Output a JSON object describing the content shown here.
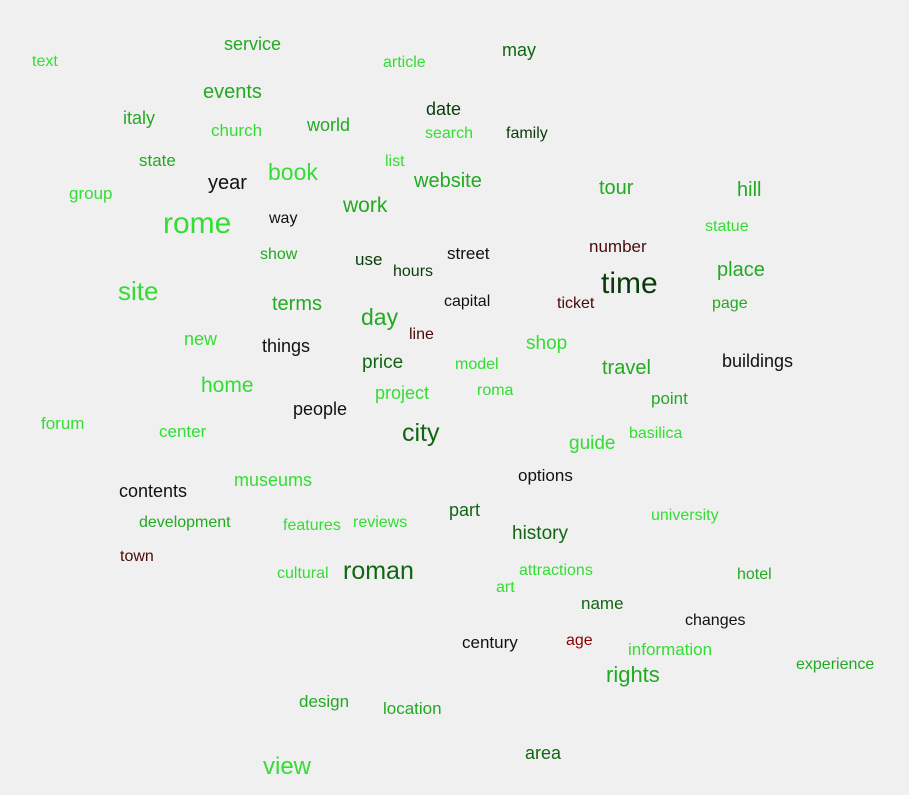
{
  "palette": {
    "lime": "#33dd33",
    "green": "#22aa22",
    "darkgreen": "#116611",
    "deepgreen": "#0a3a0a",
    "black": "#111111",
    "maroon": "#4a0a0a",
    "red": "#8b0000"
  },
  "words": [
    {
      "text": "service",
      "tone": "green"
    },
    {
      "text": "text",
      "tone": "lime"
    },
    {
      "text": "article",
      "tone": "lime"
    },
    {
      "text": "may",
      "tone": "darkgreen"
    },
    {
      "text": "events",
      "tone": "green"
    },
    {
      "text": "italy",
      "tone": "green"
    },
    {
      "text": "church",
      "tone": "lime"
    },
    {
      "text": "world",
      "tone": "green"
    },
    {
      "text": "date",
      "tone": "deepgreen"
    },
    {
      "text": "search",
      "tone": "lime"
    },
    {
      "text": "family",
      "tone": "deepgreen"
    },
    {
      "text": "state",
      "tone": "green"
    },
    {
      "text": "year",
      "tone": "black"
    },
    {
      "text": "book",
      "tone": "lime"
    },
    {
      "text": "list",
      "tone": "lime"
    },
    {
      "text": "website",
      "tone": "green"
    },
    {
      "text": "tour",
      "tone": "green"
    },
    {
      "text": "hill",
      "tone": "green"
    },
    {
      "text": "group",
      "tone": "lime"
    },
    {
      "text": "rome",
      "tone": "lime"
    },
    {
      "text": "way",
      "tone": "black"
    },
    {
      "text": "work",
      "tone": "green"
    },
    {
      "text": "statue",
      "tone": "lime"
    },
    {
      "text": "show",
      "tone": "green"
    },
    {
      "text": "use",
      "tone": "deepgreen"
    },
    {
      "text": "hours",
      "tone": "deepgreen"
    },
    {
      "text": "street",
      "tone": "black"
    },
    {
      "text": "number",
      "tone": "maroon"
    },
    {
      "text": "time",
      "tone": "deepgreen"
    },
    {
      "text": "place",
      "tone": "green"
    },
    {
      "text": "site",
      "tone": "lime"
    },
    {
      "text": "terms",
      "tone": "green"
    },
    {
      "text": "day",
      "tone": "green"
    },
    {
      "text": "capital",
      "tone": "black"
    },
    {
      "text": "ticket",
      "tone": "maroon"
    },
    {
      "text": "page",
      "tone": "green"
    },
    {
      "text": "new",
      "tone": "lime"
    },
    {
      "text": "things",
      "tone": "black"
    },
    {
      "text": "line",
      "tone": "maroon"
    },
    {
      "text": "shop",
      "tone": "lime"
    },
    {
      "text": "price",
      "tone": "darkgreen"
    },
    {
      "text": "model",
      "tone": "lime"
    },
    {
      "text": "travel",
      "tone": "green"
    },
    {
      "text": "buildings",
      "tone": "black"
    },
    {
      "text": "home",
      "tone": "lime"
    },
    {
      "text": "project",
      "tone": "lime"
    },
    {
      "text": "roma",
      "tone": "lime"
    },
    {
      "text": "point",
      "tone": "green"
    },
    {
      "text": "forum",
      "tone": "lime"
    },
    {
      "text": "center",
      "tone": "lime"
    },
    {
      "text": "people",
      "tone": "black"
    },
    {
      "text": "city",
      "tone": "darkgreen"
    },
    {
      "text": "guide",
      "tone": "lime"
    },
    {
      "text": "basilica",
      "tone": "lime"
    },
    {
      "text": "options",
      "tone": "black"
    },
    {
      "text": "contents",
      "tone": "black"
    },
    {
      "text": "museums",
      "tone": "lime"
    },
    {
      "text": "part",
      "tone": "darkgreen"
    },
    {
      "text": "development",
      "tone": "green"
    },
    {
      "text": "features",
      "tone": "lime"
    },
    {
      "text": "reviews",
      "tone": "lime"
    },
    {
      "text": "history",
      "tone": "darkgreen"
    },
    {
      "text": "university",
      "tone": "lime"
    },
    {
      "text": "town",
      "tone": "maroon"
    },
    {
      "text": "cultural",
      "tone": "lime"
    },
    {
      "text": "roman",
      "tone": "darkgreen"
    },
    {
      "text": "attractions",
      "tone": "lime"
    },
    {
      "text": "hotel",
      "tone": "green"
    },
    {
      "text": "art",
      "tone": "lime"
    },
    {
      "text": "name",
      "tone": "darkgreen"
    },
    {
      "text": "changes",
      "tone": "black"
    },
    {
      "text": "century",
      "tone": "black"
    },
    {
      "text": "age",
      "tone": "red"
    },
    {
      "text": "information",
      "tone": "lime"
    },
    {
      "text": "rights",
      "tone": "green"
    },
    {
      "text": "experience",
      "tone": "green"
    },
    {
      "text": "design",
      "tone": "green"
    },
    {
      "text": "location",
      "tone": "green"
    },
    {
      "text": "area",
      "tone": "darkgreen"
    },
    {
      "text": "view",
      "tone": "lime"
    }
  ]
}
